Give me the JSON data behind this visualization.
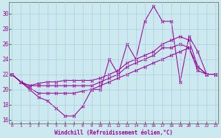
{
  "xlabel": "Windchill (Refroidissement éolien,°C)",
  "xlim": [
    -0.3,
    23.3
  ],
  "ylim": [
    15.5,
    31.5
  ],
  "yticks": [
    16,
    18,
    20,
    22,
    24,
    26,
    28,
    30
  ],
  "xticks": [
    0,
    1,
    2,
    3,
    4,
    5,
    6,
    7,
    8,
    9,
    10,
    11,
    12,
    13,
    14,
    15,
    16,
    17,
    18,
    19,
    20,
    21,
    22,
    23
  ],
  "background_color": "#cce9f0",
  "grid_color": "#aaccdd",
  "line_color": "#990099",
  "line1_x": [
    0,
    1,
    2,
    3,
    4,
    5,
    6,
    7,
    8,
    9,
    10,
    11,
    12,
    13,
    14,
    15,
    16,
    17,
    18,
    19,
    20,
    21,
    22,
    23
  ],
  "line1_y": [
    22,
    21,
    20,
    19,
    18.5,
    17.5,
    16.5,
    16.5,
    17.8,
    20,
    20,
    24,
    22,
    26,
    24,
    29,
    31,
    29,
    29,
    21,
    27,
    25,
    22,
    22
  ],
  "line2_x": [
    0,
    1,
    2,
    3,
    4,
    5,
    6,
    7,
    8,
    9,
    10,
    11,
    12,
    13,
    14,
    15,
    16,
    17,
    18,
    19,
    20,
    21,
    22,
    23
  ],
  "line2_y": [
    22,
    21,
    20.5,
    20.5,
    20.5,
    20.5,
    20.5,
    20.5,
    20.5,
    20.5,
    21,
    21.5,
    22,
    23,
    23.5,
    24,
    24.5,
    25.5,
    25.5,
    26,
    25.5,
    23,
    22,
    22
  ],
  "line3_x": [
    0,
    1,
    2,
    3,
    4,
    5,
    6,
    7,
    8,
    9,
    10,
    11,
    12,
    13,
    14,
    15,
    16,
    17,
    18,
    19,
    20,
    21,
    22,
    23
  ],
  "line3_y": [
    22,
    21,
    20.5,
    20.8,
    21,
    21,
    21.2,
    21.2,
    21.2,
    21.2,
    21.5,
    22,
    22.5,
    23.5,
    24,
    24.5,
    25,
    26,
    26.5,
    27,
    26.5,
    23,
    22,
    22
  ],
  "line4_x": [
    0,
    1,
    2,
    3,
    4,
    5,
    6,
    7,
    8,
    9,
    10,
    11,
    12,
    13,
    14,
    15,
    16,
    17,
    18,
    19,
    20,
    21,
    22,
    23
  ],
  "line4_y": [
    22,
    21,
    20.2,
    19.5,
    19.5,
    19.5,
    19.5,
    19.5,
    19.8,
    20,
    20.5,
    21,
    21.5,
    22,
    22.5,
    23,
    23.5,
    24,
    24.5,
    25,
    25.5,
    22.5,
    22,
    22
  ]
}
